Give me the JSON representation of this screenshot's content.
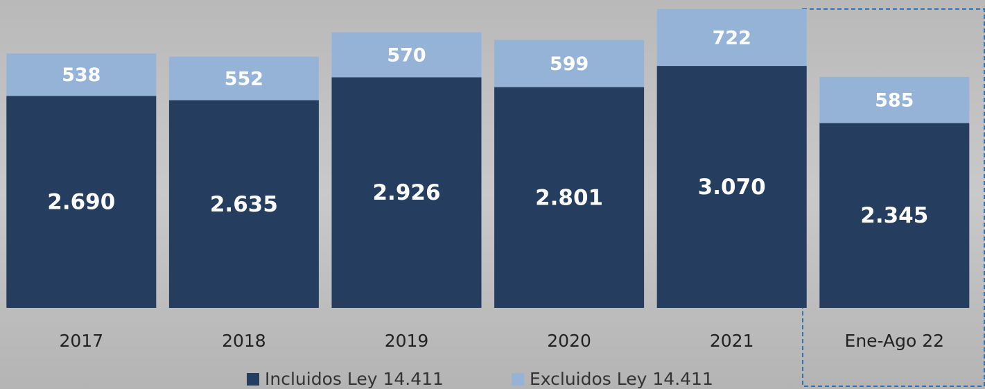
{
  "chart_data": {
    "type": "stacked-bar",
    "categories": [
      "2017",
      "2018",
      "2019",
      "2020",
      "2021",
      "Ene-Ago 22"
    ],
    "series": [
      {
        "name": "Incluidos Ley 14.411",
        "color": "#253d5e",
        "values": [
          2690,
          2635,
          2926,
          2801,
          3070,
          2345
        ],
        "value_labels": [
          "2.690",
          "2.635",
          "2.926",
          "2.801",
          "3.070",
          "2.345"
        ]
      },
      {
        "name": "Excluidos Ley 14.411",
        "color": "#95b3d7",
        "values": [
          538,
          552,
          570,
          599,
          722,
          585
        ]
      }
    ],
    "legend": "bottom"
  }
}
